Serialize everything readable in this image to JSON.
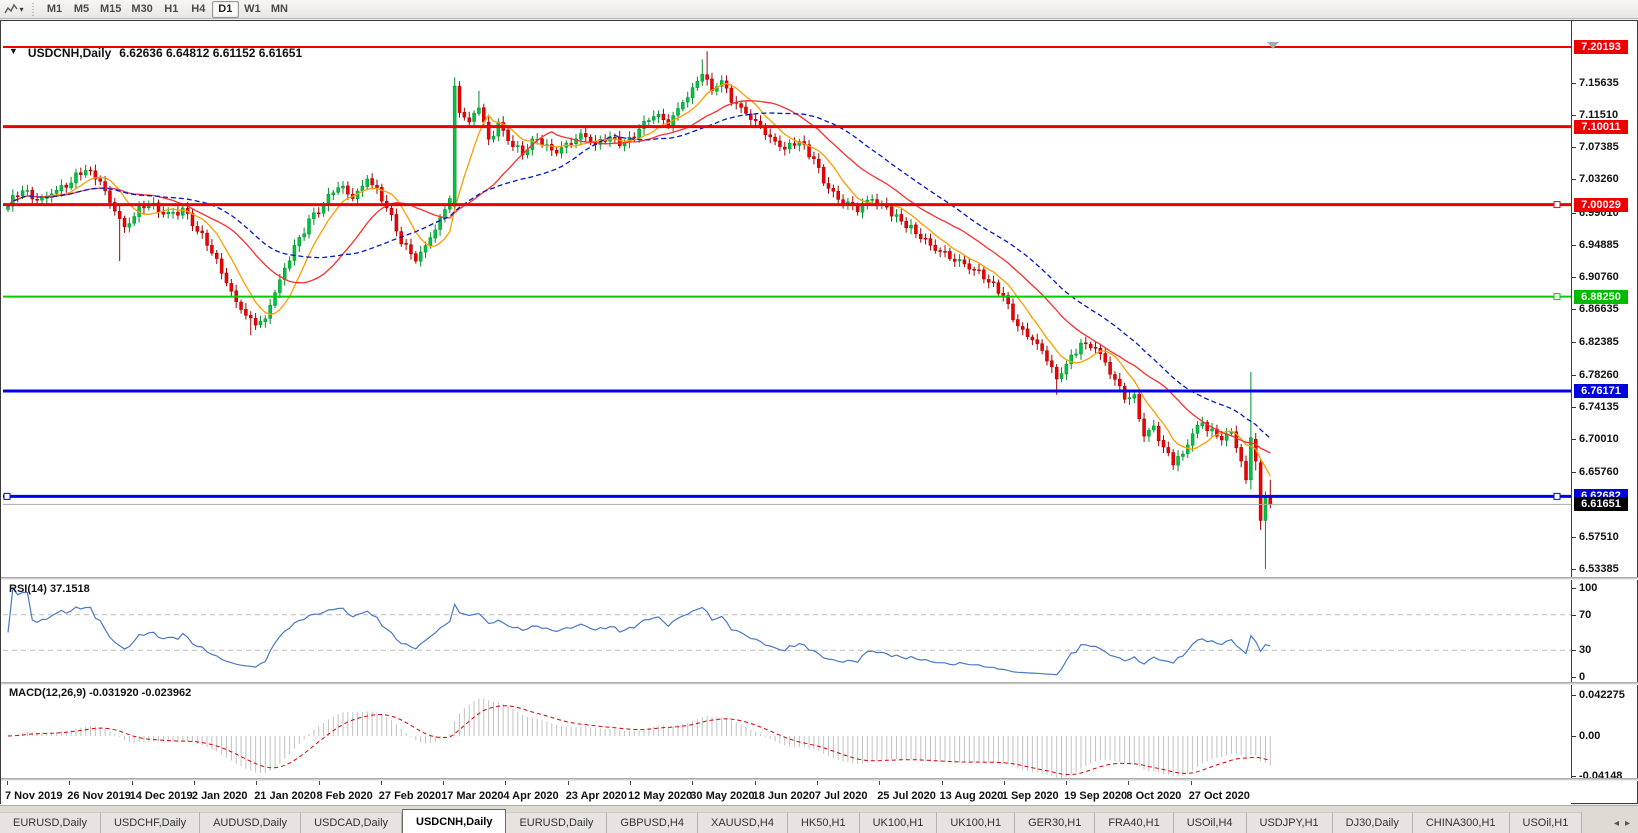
{
  "toolbar": {
    "chart_icon": "candlestick-chart-icon",
    "dropdown": "▾",
    "timeframes": [
      {
        "label": "M1",
        "active": false
      },
      {
        "label": "M5",
        "active": false
      },
      {
        "label": "M15",
        "active": false
      },
      {
        "label": "M30",
        "active": false
      },
      {
        "label": "H1",
        "active": false
      },
      {
        "label": "H4",
        "active": false
      },
      {
        "label": "D1",
        "active": true
      },
      {
        "label": "W1",
        "active": false
      },
      {
        "label": "MN",
        "active": false
      }
    ]
  },
  "chart": {
    "title_symbol": "USDCNH,Daily",
    "title_ohlc": "6.62636 6.64812 6.61152 6.61651",
    "collapse_triangle": "▼"
  },
  "rsi_panel": {
    "label": "RSI(14) 37.1518"
  },
  "macd_panel": {
    "label": "MACD(12,26,9) -0.031920 -0.023962"
  },
  "dates": [
    "7 Nov 2019",
    "26 Nov 2019",
    "14 Dec 2019",
    "2 Jan 2020",
    "21 Jan 2020",
    "8 Feb 2020",
    "27 Feb 2020",
    "17 Mar 2020",
    "4 Apr 2020",
    "23 Apr 2020",
    "12 May 2020",
    "30 May 2020",
    "18 Jun 2020",
    "7 Jul 2020",
    "25 Jul 2020",
    "13 Aug 2020",
    "1 Sep 2020",
    "19 Sep 2020",
    "8 Oct 2020",
    "27 Oct 2020"
  ],
  "tabs": [
    {
      "label": "EURUSD,Daily",
      "active": false
    },
    {
      "label": "USDCHF,Daily",
      "active": false
    },
    {
      "label": "AUDUSD,Daily",
      "active": false
    },
    {
      "label": "USDCAD,Daily",
      "active": false
    },
    {
      "label": "USDCNH,Daily",
      "active": true
    },
    {
      "label": "EURUSD,Daily",
      "active": false
    },
    {
      "label": "GBPUSD,H4",
      "active": false
    },
    {
      "label": "XAUUSD,H4",
      "active": false
    },
    {
      "label": "HK50,H1",
      "active": false
    },
    {
      "label": "UK100,H1",
      "active": false
    },
    {
      "label": "UK100,H1",
      "active": false
    },
    {
      "label": "GER30,H1",
      "active": false
    },
    {
      "label": "FRA40,H1",
      "active": false
    },
    {
      "label": "USOil,H4",
      "active": false
    },
    {
      "label": "USDJPY,H1",
      "active": false
    },
    {
      "label": "DJ30,Daily",
      "active": false
    },
    {
      "label": "CHINA300,H1",
      "active": false
    },
    {
      "label": "USOil,H1",
      "active": false
    }
  ],
  "tab_arrows": {
    "left": "◂",
    "right": "▸"
  },
  "chart_data": {
    "type": "candlestick",
    "symbol": "USDCNH",
    "timeframe": "Daily",
    "last_bar": {
      "open": 6.62636,
      "high": 6.64812,
      "low": 6.61152,
      "close": 6.61651
    },
    "bars": 261,
    "ylim": [
      6.5249,
      7.2327
    ],
    "price_ticks": [
      "7.15635",
      "7.11510",
      "7.07385",
      "7.03260",
      "6.99010",
      "6.94885",
      "6.90760",
      "6.86635",
      "6.82385",
      "6.78260",
      "6.74135",
      "6.70010",
      "6.65760",
      "6.57510",
      "6.53385"
    ],
    "candle_colors": {
      "up": "#00c341",
      "up_stroke": "#008f2b",
      "down": "#f20000",
      "down_stroke": "#a60000"
    },
    "anchors": [
      [
        0,
        6.998
      ],
      [
        3,
        7.018
      ],
      [
        6,
        7.006
      ],
      [
        9,
        7.014
      ],
      [
        13,
        7.028
      ],
      [
        16,
        7.044
      ],
      [
        19,
        7.03
      ],
      [
        22,
        6.992
      ],
      [
        24,
        6.972
      ],
      [
        26,
        6.985
      ],
      [
        29,
        7.001
      ],
      [
        32,
        6.988
      ],
      [
        36,
        6.996
      ],
      [
        39,
        6.966
      ],
      [
        42,
        6.938
      ],
      [
        45,
        6.9
      ],
      [
        48,
        6.866
      ],
      [
        51,
        6.846
      ],
      [
        53,
        6.854
      ],
      [
        56,
        6.904
      ],
      [
        59,
        6.948
      ],
      [
        62,
        6.982
      ],
      [
        65,
        6.999
      ],
      [
        68,
        7.022
      ],
      [
        71,
        7.008
      ],
      [
        74,
        7.033
      ],
      [
        76,
        7.022
      ],
      [
        78,
        6.996
      ],
      [
        81,
        6.95
      ],
      [
        84,
        6.928
      ],
      [
        87,
        6.958
      ],
      [
        90,
        6.994
      ],
      [
        91,
        7.008
      ],
      [
        92,
        7.152
      ],
      [
        93,
        7.118
      ],
      [
        95,
        7.106
      ],
      [
        97,
        7.124
      ],
      [
        99,
        7.084
      ],
      [
        101,
        7.106
      ],
      [
        103,
        7.082
      ],
      [
        106,
        7.064
      ],
      [
        109,
        7.084
      ],
      [
        112,
        7.07
      ],
      [
        115,
        7.079
      ],
      [
        118,
        7.091
      ],
      [
        121,
        7.077
      ],
      [
        124,
        7.087
      ],
      [
        127,
        7.08
      ],
      [
        130,
        7.097
      ],
      [
        133,
        7.113
      ],
      [
        136,
        7.101
      ],
      [
        139,
        7.131
      ],
      [
        142,
        7.158
      ],
      [
        143,
        7.167
      ],
      [
        145,
        7.146
      ],
      [
        147,
        7.159
      ],
      [
        149,
        7.131
      ],
      [
        152,
        7.117
      ],
      [
        155,
        7.101
      ],
      [
        157,
        7.087
      ],
      [
        160,
        7.071
      ],
      [
        163,
        7.081
      ],
      [
        166,
        7.059
      ],
      [
        169,
        7.021
      ],
      [
        172,
        7.001
      ],
      [
        175,
        6.991
      ],
      [
        178,
        7.007
      ],
      [
        181,
        6.997
      ],
      [
        184,
        6.979
      ],
      [
        187,
        6.963
      ],
      [
        190,
        6.948
      ],
      [
        193,
        6.94
      ],
      [
        196,
        6.93
      ],
      [
        199,
        6.917
      ],
      [
        202,
        6.901
      ],
      [
        205,
        6.884
      ],
      [
        208,
        6.845
      ],
      [
        211,
        6.827
      ],
      [
        214,
        6.8
      ],
      [
        216,
        6.777
      ],
      [
        218,
        6.796
      ],
      [
        221,
        6.823
      ],
      [
        224,
        6.817
      ],
      [
        227,
        6.783
      ],
      [
        230,
        6.751
      ],
      [
        232,
        6.757
      ],
      [
        234,
        6.704
      ],
      [
        236,
        6.717
      ],
      [
        238,
        6.69
      ],
      [
        240,
        6.667
      ],
      [
        242,
        6.681
      ],
      [
        244,
        6.707
      ],
      [
        246,
        6.721
      ],
      [
        248,
        6.713
      ],
      [
        250,
        6.699
      ],
      [
        252,
        6.71
      ],
      [
        254,
        6.672
      ],
      [
        255,
        6.648
      ],
      [
        256,
        6.702
      ],
      [
        257,
        6.672
      ],
      [
        258,
        6.596
      ],
      [
        259,
        6.626
      ],
      [
        260,
        6.6165
      ]
    ],
    "wiggle": {
      "a1": 0.0045,
      "f1": 1.93,
      "a2": 0.0032,
      "f2": 0.47
    },
    "range_pad": {
      "base": 0.003,
      "amp": 0.005,
      "fh": 1.31,
      "fl": 2.17
    },
    "specials": [
      {
        "i": 23,
        "low": 6.928
      },
      {
        "i": 50,
        "low": 6.833
      },
      {
        "i": 92,
        "open": 6.998,
        "close": 7.152,
        "high": 7.163,
        "low": 6.992
      },
      {
        "i": 97,
        "high": 7.146
      },
      {
        "i": 143,
        "high": 7.186
      },
      {
        "i": 144,
        "high": 7.1965
      },
      {
        "i": 216,
        "low": 6.757
      },
      {
        "i": 256,
        "open": 6.648,
        "close": 6.702,
        "high": 6.786,
        "low": 6.636
      },
      {
        "i": 257,
        "open": 6.7,
        "close": 6.672,
        "high": 6.708,
        "low": 6.66
      },
      {
        "i": 258,
        "open": 6.67,
        "close": 6.596,
        "high": 6.674,
        "low": 6.584
      },
      {
        "i": 259,
        "open": 6.596,
        "close": 6.626,
        "high": 6.633,
        "low": 6.534
      },
      {
        "i": 260,
        "open": 6.62636,
        "close": 6.61651,
        "high": 6.64812,
        "low": 6.61152
      }
    ],
    "moving_averages": [
      {
        "name": "ma-fast",
        "period": 8,
        "color": "#ff9c00",
        "dash": ""
      },
      {
        "name": "ma-mid",
        "period": 21,
        "color": "#ff2e2e",
        "dash": ""
      },
      {
        "name": "ma-slow",
        "period": 34,
        "color": "#0018c8",
        "dash": "5,3"
      }
    ],
    "levels": [
      {
        "value": 7.20193,
        "label": "7.20193",
        "color": "#ee0000",
        "badge_bg": "#ee0000",
        "width": 2,
        "handles": []
      },
      {
        "value": 7.10011,
        "label": "7.10011",
        "color": "#ee0000",
        "badge_bg": "#ee0000",
        "width": 3,
        "handles": []
      },
      {
        "value": 7.00029,
        "label": "7.00029",
        "color": "#ee0000",
        "badge_bg": "#ee0000",
        "width": 3,
        "handles": [
          "right"
        ]
      },
      {
        "value": 6.8825,
        "label": "6.88250",
        "color": "#00cc00",
        "badge_bg": "#00bb00",
        "width": 2,
        "handles": [
          "right"
        ]
      },
      {
        "value": 6.76171,
        "label": "6.76171",
        "color": "#0000ee",
        "badge_bg": "#0000dd",
        "width": 3,
        "handles": []
      },
      {
        "value": 6.62682,
        "label": "6.62682",
        "color": "#0000ee",
        "badge_bg": "#0000dd",
        "width": 3,
        "handles": [
          "left",
          "right"
        ]
      },
      {
        "value": 6.61651,
        "label": "6.61651",
        "color": "#a8a8a8",
        "badge_bg": "#000000",
        "width": 1,
        "handles": []
      }
    ],
    "rsi": {
      "period": 14,
      "current": 37.1518,
      "overbought": 70,
      "oversold": 30,
      "ticks": [
        100,
        70,
        30,
        0
      ],
      "line_color": "#4a78c8",
      "level_color": "#bcbcbc"
    },
    "macd": {
      "fast": 12,
      "slow": 26,
      "signal": 9,
      "current_macd": -0.03192,
      "current_signal": -0.023962,
      "ticks": [
        {
          "v": 0.042275,
          "label": "0.042275"
        },
        {
          "v": 0,
          "label": "0.00"
        },
        {
          "v": -0.04148,
          "label": "-0.04148"
        }
      ],
      "hist_color": "#c2c2c2",
      "signal_color": "#e00000"
    }
  }
}
